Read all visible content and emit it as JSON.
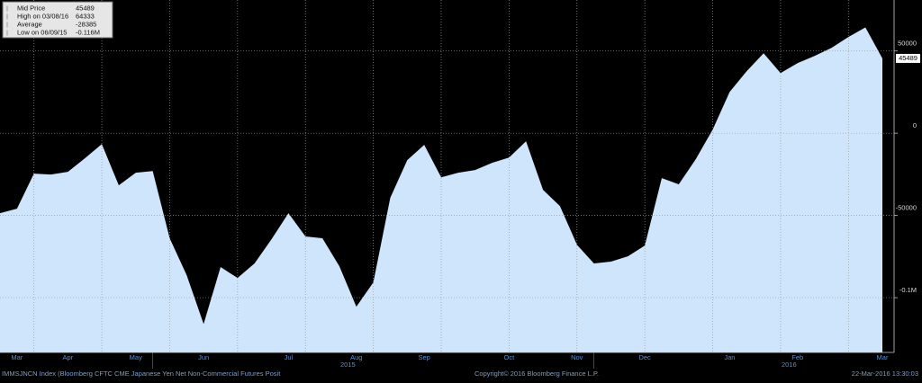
{
  "chart_data": {
    "type": "area",
    "color": "#cfe5fc",
    "categories": [
      null,
      "Mar",
      null,
      null,
      "Apr",
      null,
      null,
      null,
      "May",
      null,
      null,
      null,
      "Jun",
      null,
      null,
      null,
      null,
      "Jul",
      null,
      null,
      null,
      "Aug",
      null,
      null,
      null,
      "Sep",
      null,
      null,
      null,
      null,
      "Oct",
      null,
      null,
      null,
      "Nov",
      null,
      null,
      null,
      "Dec",
      null,
      null,
      null,
      null,
      "Jan",
      null,
      null,
      null,
      "Feb",
      null,
      null,
      null,
      null,
      "Mar"
    ],
    "values": [
      -48600,
      -45900,
      -24600,
      -25100,
      -23500,
      -15300,
      -6600,
      -31700,
      -24000,
      -23000,
      -63900,
      -86300,
      -116000,
      -81400,
      -88000,
      -79200,
      -64500,
      -48600,
      -62800,
      -63900,
      -80900,
      -105500,
      -90700,
      -39300,
      -16400,
      -7100,
      -26800,
      -24000,
      -22400,
      -18000,
      -14800,
      -4900,
      -34400,
      -44300,
      -67800,
      -79200,
      -78100,
      -74900,
      -68300,
      -27300,
      -31100,
      -15800,
      2200,
      25100,
      37700,
      48600,
      36600,
      42600,
      47000,
      51900,
      58500,
      64333,
      45489
    ],
    "years": [
      {
        "label": "2015",
        "at": 21
      },
      {
        "label": "2016",
        "at": 47
      }
    ],
    "ylim": [
      -133300,
      81000
    ],
    "yticks": [
      50000,
      0,
      -50000,
      {
        "value": -100000,
        "label": "-0.1M"
      }
    ],
    "grid": true,
    "stats": [
      {
        "label": "Mid Price",
        "value": 45489
      },
      {
        "label": "High on 03/08/16",
        "value": 64333
      },
      {
        "label": "Average",
        "value": -28385
      },
      {
        "label": "Low on 06/09/15",
        "value": -116000,
        "value_label": "-0.116M"
      }
    ],
    "footer": {
      "left": "IMMSJNCN Index (Bloomberg CFTC CME Japanese Yen Net Non-Commercial Futures Posit",
      "center": "Copyright© 2016 Bloomberg Finance L.P.",
      "right": "22-Mar-2016 13:30:03"
    }
  }
}
